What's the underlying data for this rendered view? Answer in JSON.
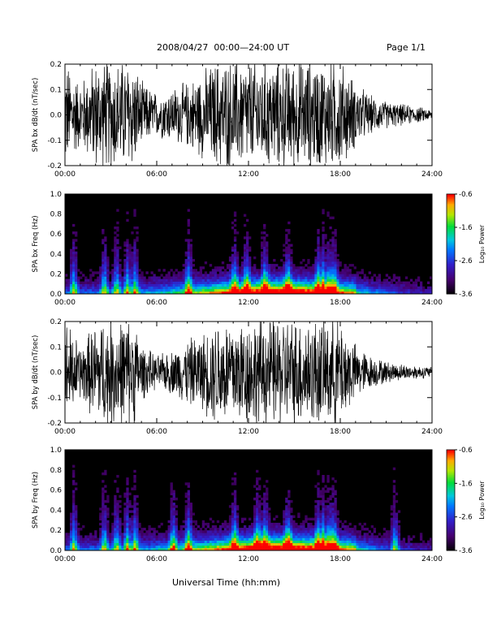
{
  "header": {
    "date": "2008/04/27",
    "time_range": "00:00—24:00 UT",
    "page": "Page 1/1"
  },
  "footer": {
    "xlabel": "Universal Time (hh:mm)"
  },
  "colorbar": {
    "label": "Log₁₀ Power",
    "ticks": [
      "-0.6",
      "-1.6",
      "-2.6",
      "-3.6"
    ],
    "range": [
      -3.6,
      -0.6
    ]
  },
  "chart_data": [
    {
      "type": "line",
      "panel": "bx-waveform",
      "ylabel": "SPA bx dB/dt (nT/sec)",
      "x_ticks": [
        "00:00",
        "06:00",
        "12:00",
        "18:00",
        "24:00"
      ],
      "y_ticks": [
        "0.2",
        "0.1",
        "0.0",
        "-0.1",
        "-0.2"
      ],
      "xlim": [
        0,
        24
      ],
      "ylim": [
        -0.2,
        0.2
      ],
      "series": [
        {
          "x": [
            0,
            1,
            2,
            2.5,
            3,
            4,
            4.5,
            5,
            6,
            7,
            8,
            9,
            10,
            11,
            12,
            13,
            14,
            15,
            16,
            17,
            18,
            19,
            20,
            21,
            22,
            23,
            24
          ],
          "amplitude": [
            0.2,
            0.12,
            0.2,
            0.2,
            0.2,
            0.2,
            0.2,
            0.12,
            0.08,
            0.1,
            0.12,
            0.16,
            0.2,
            0.2,
            0.2,
            0.2,
            0.2,
            0.2,
            0.2,
            0.2,
            0.2,
            0.12,
            0.07,
            0.05,
            0.04,
            0.03,
            0.02
          ]
        }
      ]
    },
    {
      "type": "heatmap",
      "panel": "bx-spectrogram",
      "ylabel": "SPA bx Freq (Hz)",
      "x_ticks": [
        "00:00",
        "06:00",
        "12:00",
        "18:00",
        "24:00"
      ],
      "y_ticks": [
        "1.0",
        "0.8",
        "0.6",
        "0.4",
        "0.2",
        "0.0"
      ],
      "xlim": [
        0,
        24
      ],
      "ylim": [
        0,
        1.0
      ],
      "zlim": [
        -3.6,
        -0.6
      ],
      "bursts_hours": [
        0.5,
        2.5,
        3.3,
        4.0,
        4.5,
        8.0,
        11.0,
        11.8,
        13.0,
        14.5,
        16.5,
        16.8,
        17.2,
        17.5
      ]
    },
    {
      "type": "line",
      "panel": "by-waveform",
      "ylabel": "SPA by dB/dt (nT/sec)",
      "x_ticks": [
        "00:00",
        "06:00",
        "12:00",
        "18:00",
        "24:00"
      ],
      "y_ticks": [
        "0.2",
        "0.1",
        "0.0",
        "-0.1",
        "-0.2"
      ],
      "xlim": [
        0,
        24
      ],
      "ylim": [
        -0.2,
        0.2
      ],
      "series": [
        {
          "x": [
            0,
            1,
            2,
            2.5,
            3,
            4,
            4.5,
            5,
            6,
            7,
            8,
            9,
            10,
            11,
            12,
            13,
            14,
            15,
            16,
            17,
            18,
            19,
            20,
            21,
            22,
            23,
            24
          ],
          "amplitude": [
            0.2,
            0.1,
            0.18,
            0.2,
            0.2,
            0.2,
            0.2,
            0.1,
            0.06,
            0.08,
            0.12,
            0.14,
            0.2,
            0.2,
            0.2,
            0.2,
            0.2,
            0.2,
            0.2,
            0.2,
            0.2,
            0.1,
            0.06,
            0.04,
            0.03,
            0.025,
            0.02
          ]
        }
      ]
    },
    {
      "type": "heatmap",
      "panel": "by-spectrogram",
      "ylabel": "SPA by Freq (Hz)",
      "x_ticks": [
        "00:00",
        "06:00",
        "12:00",
        "18:00",
        "24:00"
      ],
      "y_ticks": [
        "1.0",
        "0.8",
        "0.6",
        "0.4",
        "0.2",
        "0.0"
      ],
      "xlim": [
        0,
        24
      ],
      "ylim": [
        0,
        1.0
      ],
      "zlim": [
        -3.6,
        -0.6
      ],
      "bursts_hours": [
        0.5,
        2.5,
        3.3,
        4.0,
        4.5,
        7.0,
        8.0,
        11.0,
        12.5,
        13.0,
        14.5,
        16.5,
        16.8,
        17.2,
        17.5,
        21.5
      ]
    }
  ]
}
